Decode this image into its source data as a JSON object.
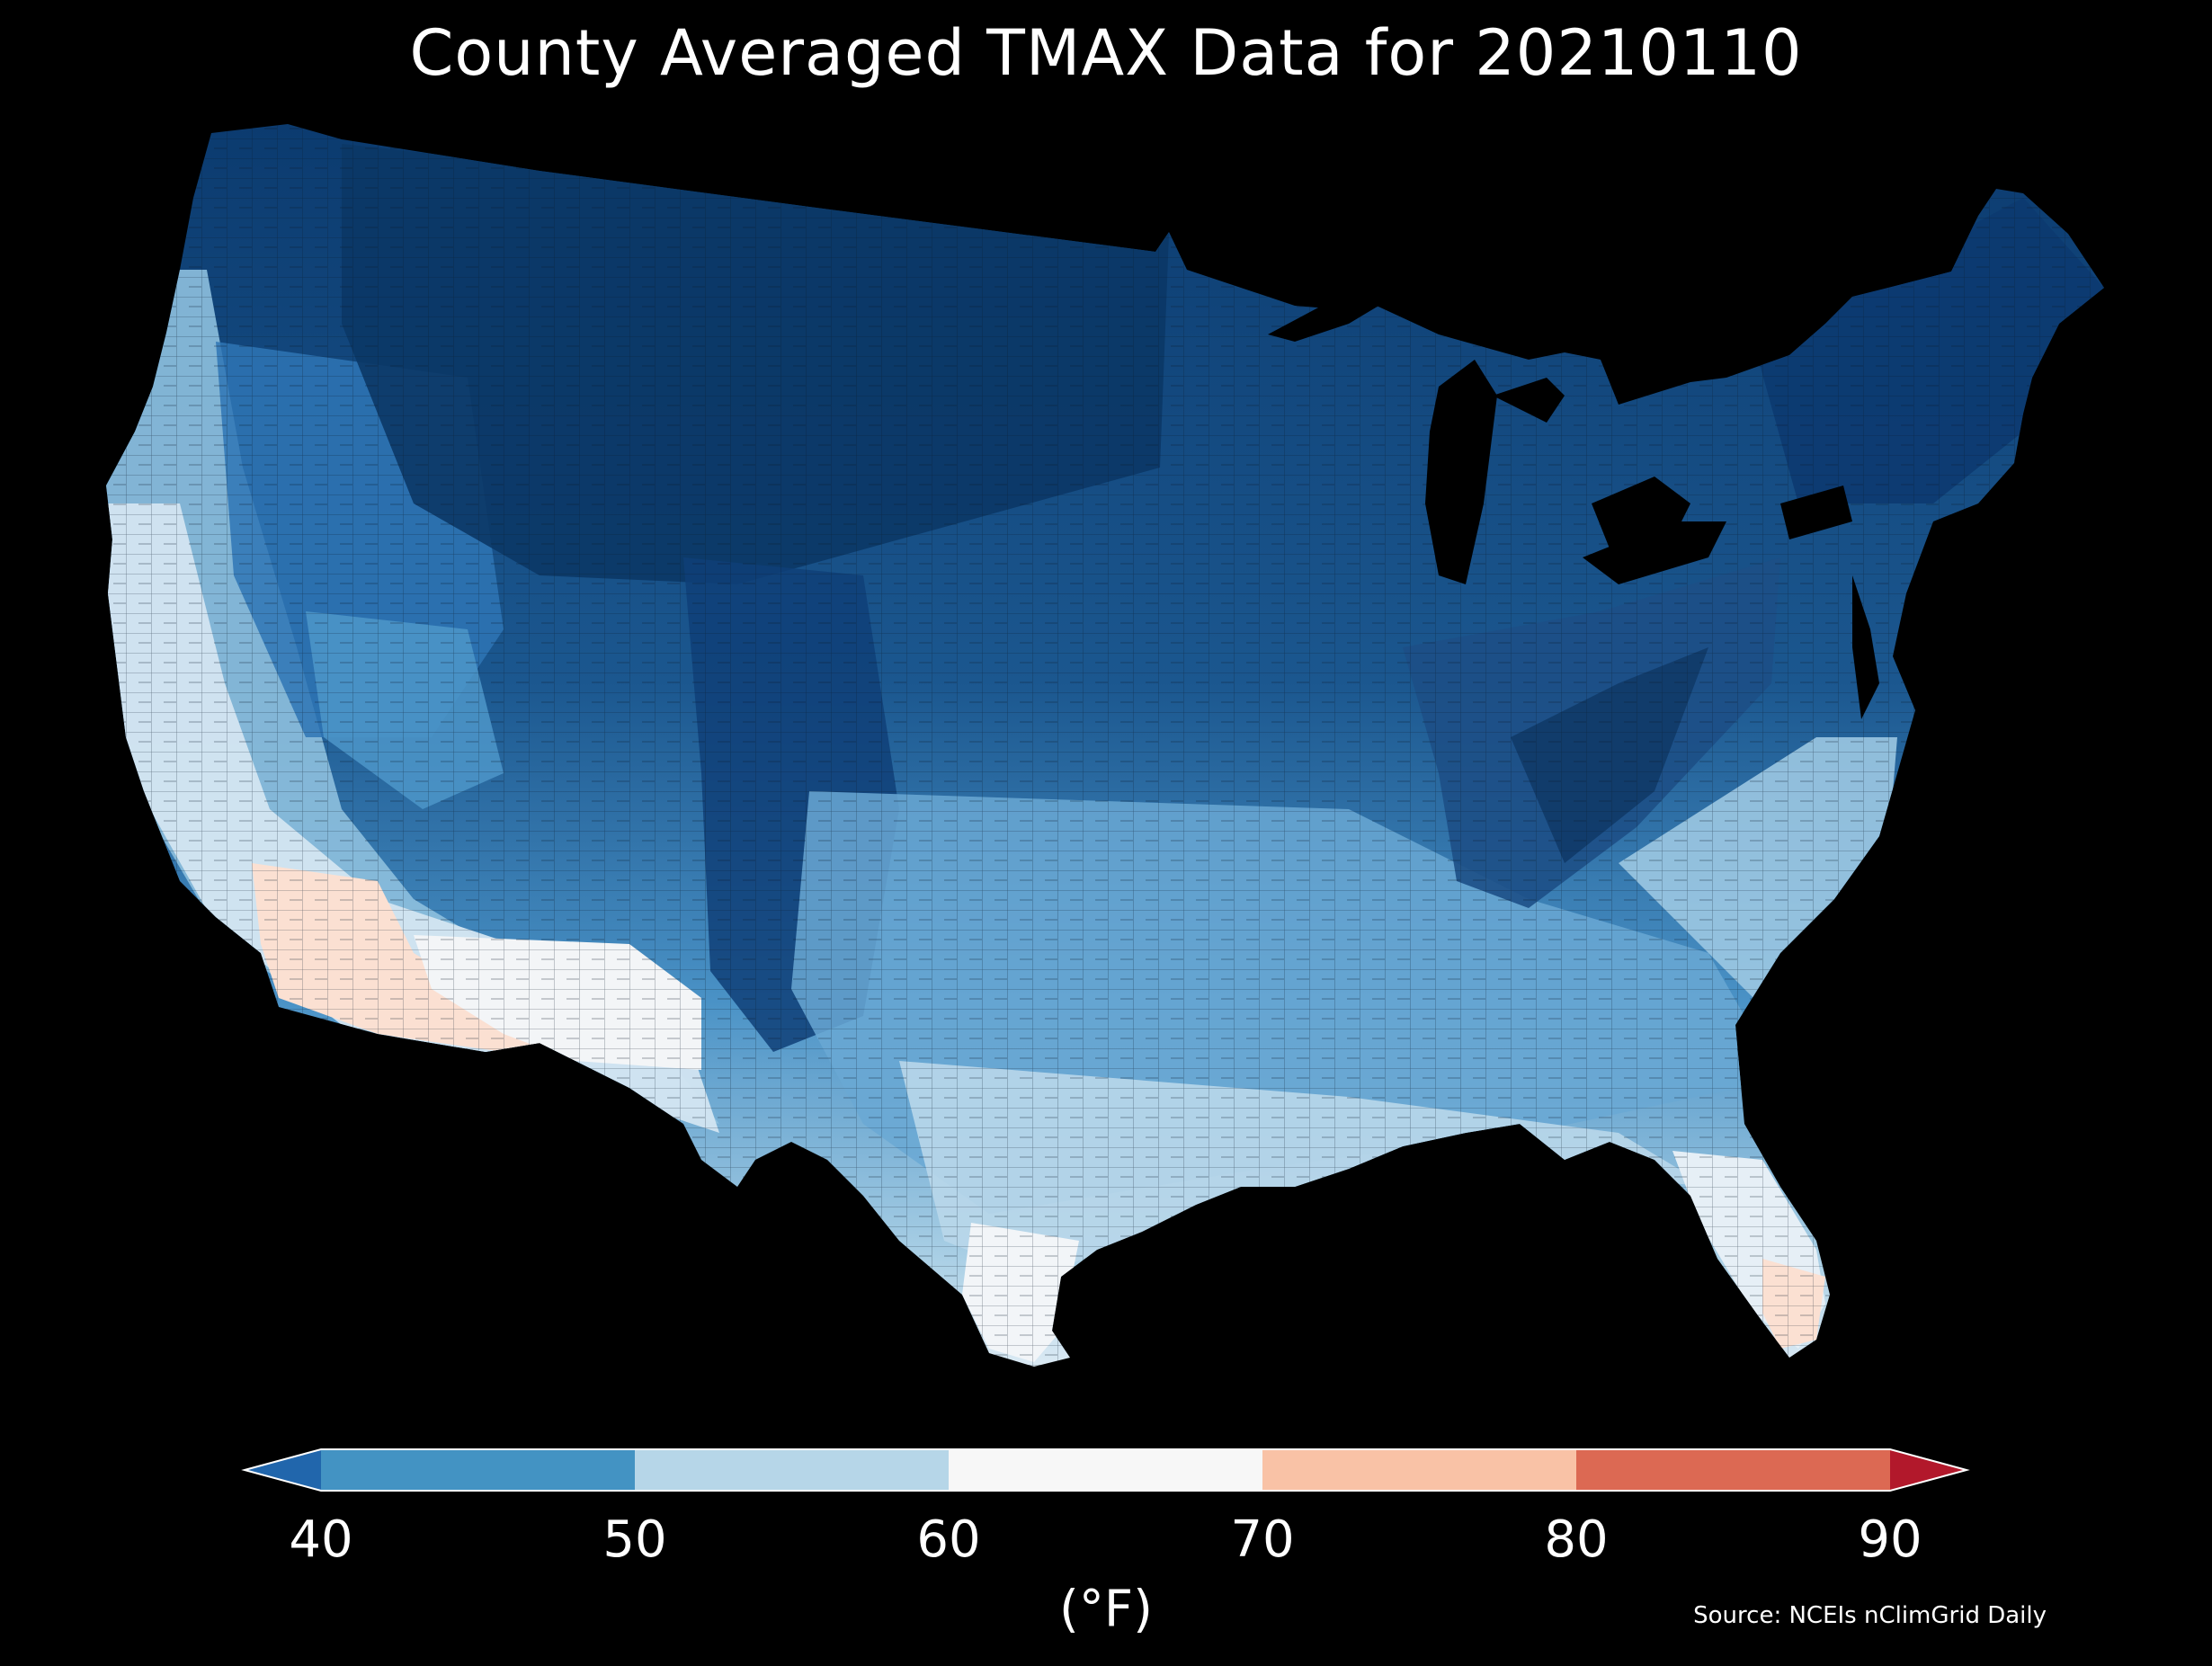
{
  "title": "County Averaged TMAX Data for 20210110",
  "colorbar": {
    "ticks": [
      "40",
      "50",
      "60",
      "70",
      "80",
      "90"
    ],
    "units": "(°F)",
    "under_color": "#2166ac",
    "over_color": "#b2182b",
    "bins": [
      {
        "from": 40,
        "to": 50,
        "color": "#4393c3"
      },
      {
        "from": 50,
        "to": 60,
        "color": "#b6d6e8"
      },
      {
        "from": 60,
        "to": 70,
        "color": "#f7f7f7"
      },
      {
        "from": 70,
        "to": 80,
        "color": "#f9c2a6"
      },
      {
        "from": 80,
        "to": 90,
        "color": "#dc6953"
      }
    ]
  },
  "source": "Source: NCEIs nClimGrid Daily",
  "map": {
    "region": "Contiguous United States counties",
    "variable": "TMAX",
    "colors": {
      "coldest": "#0b3a6e",
      "cold": "#1c5a9c",
      "mid": "#3f8ac2",
      "cool": "#8ec0de",
      "mild": "#d6e7f2",
      "warm": "#fbe3d6",
      "background": "#000000"
    }
  }
}
